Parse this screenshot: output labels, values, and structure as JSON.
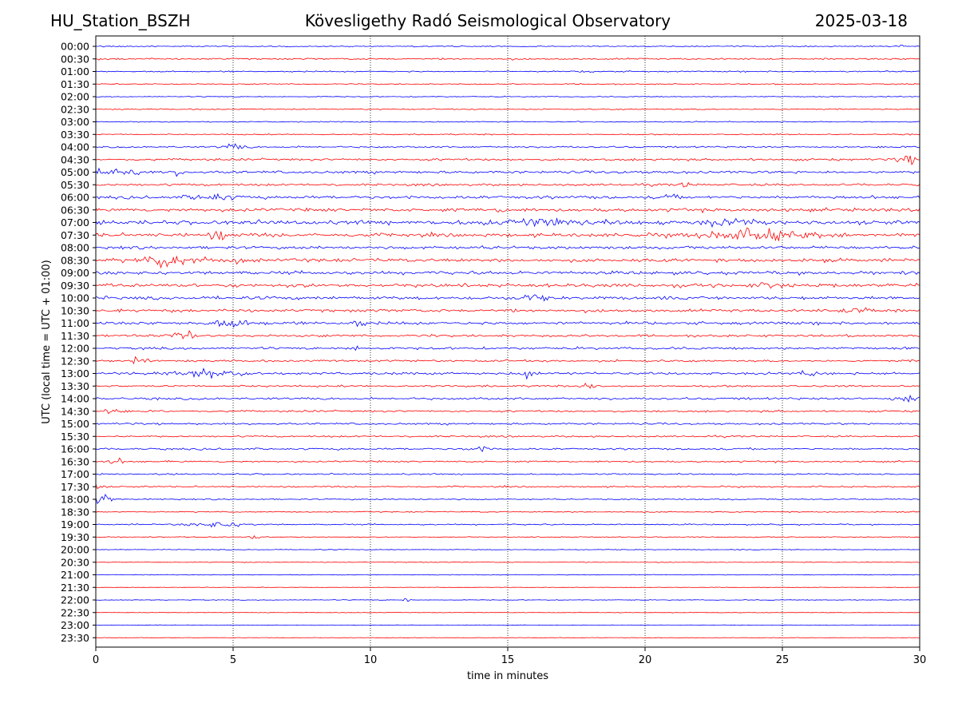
{
  "header": {
    "station": "HU_Station_BSZH",
    "observatory": "Kövesligethy Radó Seismological Observatory",
    "date": "2025-03-18"
  },
  "chart_data": {
    "type": "line",
    "title": "Kövesligethy Radó Seismological Observatory",
    "xlabel": "time in minutes",
    "ylabel": "UTC (local time = UTC + 01:00)",
    "xlim": [
      0,
      30
    ],
    "x_ticks": [
      "0",
      "5",
      "10",
      "15",
      "20",
      "25",
      "30"
    ],
    "grid": "vertical dotted lines at 5, 10, 15, 20, 25",
    "colors": {
      "even_rows": "#0000ff",
      "odd_rows": "#ff0000",
      "grid": "#000000"
    },
    "row_labels": [
      "00:00",
      "00:30",
      "01:00",
      "01:30",
      "02:00",
      "02:30",
      "03:00",
      "03:30",
      "04:00",
      "04:30",
      "05:00",
      "05:30",
      "06:00",
      "06:30",
      "07:00",
      "07:30",
      "08:00",
      "08:30",
      "09:00",
      "09:30",
      "10:00",
      "10:30",
      "11:00",
      "11:30",
      "12:00",
      "12:30",
      "13:00",
      "13:30",
      "14:00",
      "14:30",
      "15:00",
      "15:30",
      "16:00",
      "16:30",
      "17:00",
      "17:30",
      "18:00",
      "18:30",
      "19:00",
      "19:30",
      "20:00",
      "20:30",
      "21:00",
      "21:30",
      "22:00",
      "22:30",
      "23:00",
      "23:30"
    ],
    "noise_levels": [
      0.6,
      0.9,
      0.7,
      0.6,
      0.5,
      0.6,
      0.6,
      0.6,
      0.9,
      1.2,
      1.4,
      1.2,
      1.6,
      1.8,
      2.2,
      1.9,
      1.6,
      1.8,
      1.8,
      1.9,
      1.7,
      1.6,
      1.6,
      1.3,
      1.3,
      1.1,
      1.3,
      1.0,
      1.2,
      1.0,
      1.0,
      0.9,
      1.0,
      0.9,
      0.8,
      0.8,
      0.7,
      0.6,
      0.7,
      0.5,
      0.4,
      0.4,
      0.4,
      0.3,
      0.4,
      0.3,
      0.3,
      0.3
    ],
    "events": [
      {
        "row": 0,
        "minute": 29.3,
        "amp": 2.5,
        "dur": 0.3
      },
      {
        "row": 2,
        "minute": 17.9,
        "amp": 2.5,
        "dur": 0.3
      },
      {
        "row": 8,
        "minute": 5.0,
        "amp": 2.5,
        "dur": 1.0
      },
      {
        "row": 9,
        "minute": 29.5,
        "amp": 6.0,
        "dur": 0.6
      },
      {
        "row": 10,
        "minute": 0.4,
        "amp": 5.0,
        "dur": 1.0
      },
      {
        "row": 10,
        "minute": 1.4,
        "amp": 4.0,
        "dur": 0.4
      },
      {
        "row": 10,
        "minute": 3.0,
        "amp": 3.0,
        "dur": 0.4
      },
      {
        "row": 11,
        "minute": 21.5,
        "amp": 3.5,
        "dur": 0.3
      },
      {
        "row": 12,
        "minute": 4.2,
        "amp": 3.5,
        "dur": 1.5
      },
      {
        "row": 12,
        "minute": 20.9,
        "amp": 3.0,
        "dur": 0.4
      },
      {
        "row": 13,
        "minute": 14.8,
        "amp": 3.0,
        "dur": 0.5
      },
      {
        "row": 13,
        "minute": 29.0,
        "amp": 3.0,
        "dur": 0.5
      },
      {
        "row": 14,
        "minute": 16.0,
        "amp": 3.0,
        "dur": 4.0
      },
      {
        "row": 14,
        "minute": 23.0,
        "amp": 3.0,
        "dur": 2.0
      },
      {
        "row": 15,
        "minute": 4.5,
        "amp": 4.5,
        "dur": 0.8
      },
      {
        "row": 15,
        "minute": 24.0,
        "amp": 5.0,
        "dur": 4.0
      },
      {
        "row": 17,
        "minute": 2.8,
        "amp": 6.5,
        "dur": 2.0
      },
      {
        "row": 17,
        "minute": 5.3,
        "amp": 3.0,
        "dur": 0.8
      },
      {
        "row": 19,
        "minute": 24.5,
        "amp": 3.0,
        "dur": 0.8
      },
      {
        "row": 20,
        "minute": 15.8,
        "amp": 3.5,
        "dur": 1.0
      },
      {
        "row": 21,
        "minute": 27.8,
        "amp": 3.0,
        "dur": 1.0
      },
      {
        "row": 22,
        "minute": 4.8,
        "amp": 3.5,
        "dur": 2.0
      },
      {
        "row": 22,
        "minute": 9.5,
        "amp": 4.0,
        "dur": 0.5
      },
      {
        "row": 23,
        "minute": 3.2,
        "amp": 4.0,
        "dur": 1.0
      },
      {
        "row": 24,
        "minute": 9.4,
        "amp": 3.5,
        "dur": 0.5
      },
      {
        "row": 25,
        "minute": 1.6,
        "amp": 4.0,
        "dur": 0.5
      },
      {
        "row": 26,
        "minute": 4.0,
        "amp": 4.5,
        "dur": 2.6
      },
      {
        "row": 26,
        "minute": 15.7,
        "amp": 8.0,
        "dur": 0.4
      },
      {
        "row": 26,
        "minute": 26.0,
        "amp": 3.0,
        "dur": 0.6
      },
      {
        "row": 27,
        "minute": 18.0,
        "amp": 3.5,
        "dur": 0.5
      },
      {
        "row": 28,
        "minute": 29.5,
        "amp": 4.5,
        "dur": 1.0
      },
      {
        "row": 29,
        "minute": 0.6,
        "amp": 3.5,
        "dur": 0.6
      },
      {
        "row": 32,
        "minute": 14.0,
        "amp": 2.5,
        "dur": 0.8
      },
      {
        "row": 33,
        "minute": 0.7,
        "amp": 3.0,
        "dur": 0.6
      },
      {
        "row": 35,
        "minute": 0.1,
        "amp": 5.0,
        "dur": 0.3
      },
      {
        "row": 36,
        "minute": 0.25,
        "amp": 14.0,
        "dur": 0.6
      },
      {
        "row": 38,
        "minute": 4.5,
        "amp": 3.0,
        "dur": 2.0
      },
      {
        "row": 39,
        "minute": 5.8,
        "amp": 2.5,
        "dur": 0.4
      },
      {
        "row": 44,
        "minute": 11.3,
        "amp": 3.0,
        "dur": 0.3
      }
    ]
  }
}
